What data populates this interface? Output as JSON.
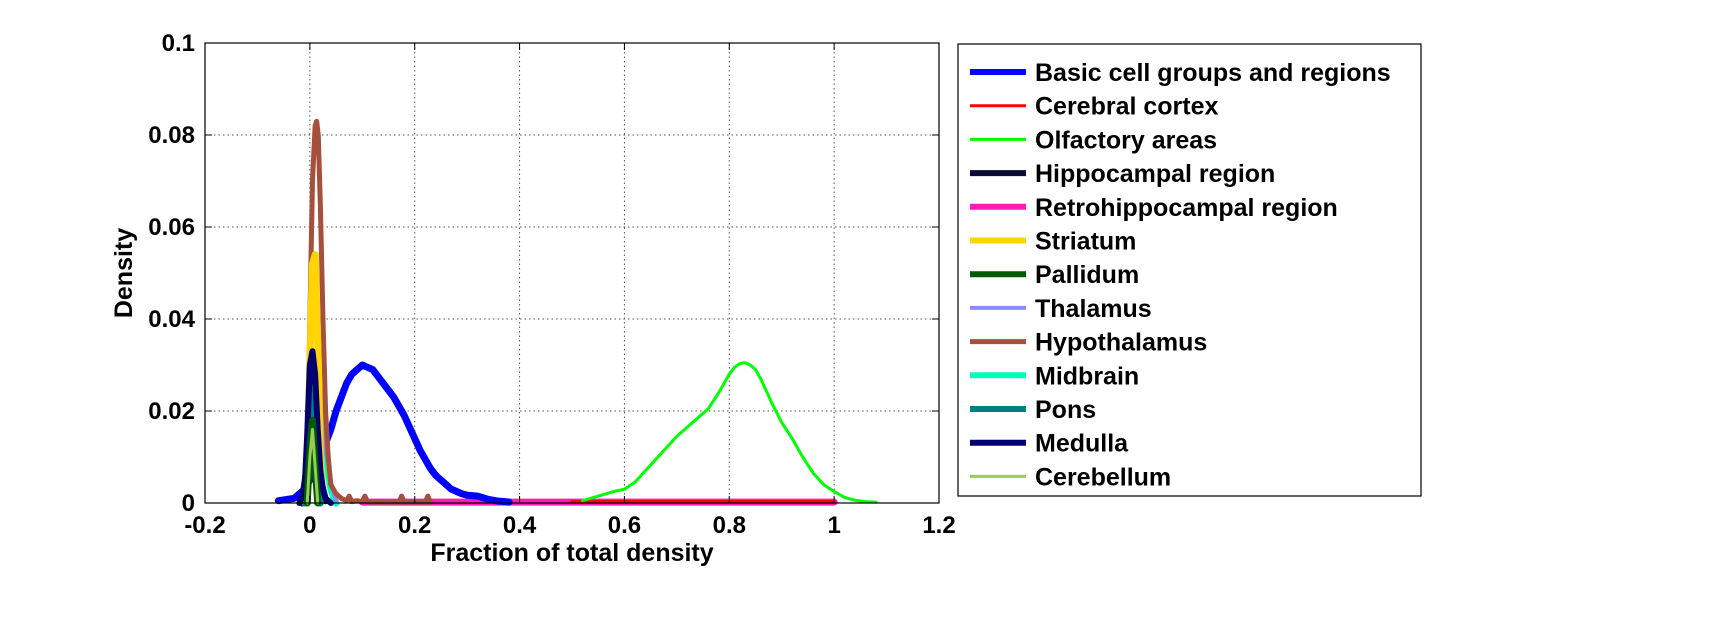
{
  "chart_data": {
    "type": "line",
    "title": "",
    "xlabel": "Fraction of total density",
    "ylabel": "Density",
    "xlim": [
      -0.2,
      1.2
    ],
    "ylim": [
      0,
      0.1
    ],
    "xticks": [
      -0.2,
      0,
      0.2,
      0.4,
      0.6,
      0.8,
      1,
      1.2
    ],
    "xtick_labels": [
      "-0.2",
      "0",
      "0.2",
      "0.4",
      "0.6",
      "0.8",
      "1",
      "1.2"
    ],
    "yticks": [
      0,
      0.02,
      0.04,
      0.06,
      0.08,
      0.1
    ],
    "ytick_labels": [
      "0",
      "0.02",
      "0.04",
      "0.06",
      "0.08",
      "0.1"
    ],
    "grid": true,
    "legend_position": "outside-right",
    "series": [
      {
        "name": "Basic cell groups and regions",
        "color": "#0000ff",
        "width": 7,
        "x": [
          -0.06,
          -0.03,
          -0.01,
          0.0,
          0.01,
          0.02,
          0.03,
          0.04,
          0.05,
          0.06,
          0.07,
          0.08,
          0.09,
          0.1,
          0.11,
          0.12,
          0.13,
          0.14,
          0.15,
          0.16,
          0.17,
          0.18,
          0.19,
          0.2,
          0.21,
          0.22,
          0.23,
          0.24,
          0.25,
          0.26,
          0.27,
          0.28,
          0.29,
          0.3,
          0.32,
          0.34,
          0.36,
          0.38
        ],
        "y": [
          0.0005,
          0.001,
          0.003,
          0.005,
          0.009,
          0.013,
          0.013,
          0.016,
          0.02,
          0.023,
          0.026,
          0.028,
          0.029,
          0.03,
          0.0295,
          0.029,
          0.0275,
          0.026,
          0.0245,
          0.023,
          0.021,
          0.019,
          0.0165,
          0.014,
          0.0115,
          0.0095,
          0.0075,
          0.006,
          0.005,
          0.004,
          0.003,
          0.0025,
          0.002,
          0.0017,
          0.0015,
          0.0008,
          0.0004,
          0.0002
        ]
      },
      {
        "name": "Cerebral cortex",
        "color": "#ff0000",
        "width": 3,
        "x": [
          0.5,
          0.6,
          0.7,
          0.8,
          0.9,
          1.0
        ],
        "y": [
          0.0003,
          0.0003,
          0.0003,
          0.0003,
          0.0003,
          0.0003
        ]
      },
      {
        "name": "Olfactory areas",
        "color": "#00ff00",
        "width": 3,
        "x": [
          0.52,
          0.55,
          0.58,
          0.6,
          0.62,
          0.64,
          0.66,
          0.68,
          0.7,
          0.72,
          0.74,
          0.76,
          0.78,
          0.8,
          0.81,
          0.82,
          0.83,
          0.84,
          0.85,
          0.86,
          0.87,
          0.88,
          0.9,
          0.92,
          0.94,
          0.96,
          0.98,
          1.0,
          1.02,
          1.04,
          1.06,
          1.08
        ],
        "y": [
          0.0005,
          0.0015,
          0.0025,
          0.003,
          0.0045,
          0.007,
          0.0095,
          0.012,
          0.0145,
          0.0165,
          0.0185,
          0.0205,
          0.024,
          0.028,
          0.0295,
          0.0303,
          0.0305,
          0.03,
          0.029,
          0.027,
          0.0245,
          0.022,
          0.0175,
          0.014,
          0.01,
          0.0065,
          0.004,
          0.0025,
          0.0012,
          0.0006,
          0.0003,
          0.0002
        ]
      },
      {
        "name": "Hippocampal region",
        "color": "#0b0b38",
        "width": 7,
        "x": [
          -0.015,
          -0.005,
          0.0,
          0.005,
          0.01,
          0.02,
          0.03
        ],
        "y": [
          0,
          0.008,
          0.025,
          0.031,
          0.02,
          0.005,
          0.0005
        ]
      },
      {
        "name": "Retrohippocampal region",
        "color": "#ff1ab8",
        "width": 7,
        "x": [
          0.1,
          0.2,
          0.3,
          0.4,
          0.5,
          0.6,
          0.7,
          0.8,
          0.9,
          1.0
        ],
        "y": [
          0.0002,
          0.0002,
          0.0002,
          0.0002,
          0.0002,
          0.0002,
          0.0002,
          0.0002,
          0.0002,
          0.0002
        ]
      },
      {
        "name": "Striatum",
        "color": "#ffd400",
        "width": 7,
        "x": [
          -0.01,
          -0.005,
          0.0,
          0.005,
          0.01,
          0.015,
          0.02,
          0.025
        ],
        "y": [
          0,
          0.01,
          0.03,
          0.052,
          0.054,
          0.035,
          0.01,
          0.001
        ]
      },
      {
        "name": "Pallidum",
        "color": "#005a00",
        "width": 7,
        "x": [
          -0.005,
          0.0,
          0.005,
          0.01,
          0.015
        ],
        "y": [
          0,
          0.012,
          0.018,
          0.008,
          0.0
        ]
      },
      {
        "name": "Thalamus",
        "color": "#8a8aff",
        "width": 4,
        "x": [
          -0.01,
          0.0,
          0.01,
          0.02,
          0.03,
          0.04,
          0.05
        ],
        "y": [
          0.0,
          0.01,
          0.028,
          0.025,
          0.012,
          0.004,
          0.0005
        ]
      },
      {
        "name": "Hypothalamus",
        "color": "#a4503c",
        "width": 5,
        "x": [
          -0.01,
          -0.005,
          0.0,
          0.005,
          0.01,
          0.013,
          0.016,
          0.02,
          0.025,
          0.03,
          0.035,
          0.04,
          0.05,
          0.06,
          0.07,
          0.075,
          0.08,
          0.09,
          0.1,
          0.105,
          0.11,
          0.12,
          0.17,
          0.175,
          0.18,
          0.22,
          0.225,
          0.23
        ],
        "y": [
          0.0,
          0.01,
          0.04,
          0.07,
          0.082,
          0.083,
          0.08,
          0.065,
          0.04,
          0.02,
          0.01,
          0.004,
          0.002,
          0.001,
          0.0005,
          0.0015,
          0.0003,
          0.0005,
          0.0003,
          0.0015,
          0.0003,
          0.0002,
          0.0002,
          0.0015,
          0.0002,
          0.0002,
          0.0015,
          0.0002
        ]
      },
      {
        "name": "Midbrain",
        "color": "#00ffb8",
        "width": 7,
        "x": [
          -0.01,
          0.0,
          0.01,
          0.02,
          0.03,
          0.04,
          0.05
        ],
        "y": [
          0.0,
          0.008,
          0.02,
          0.018,
          0.01,
          0.003,
          0.0
        ]
      },
      {
        "name": "Pons",
        "color": "#008080",
        "width": 7,
        "x": [
          -0.01,
          -0.005,
          0.0,
          0.005,
          0.01,
          0.015,
          0.02
        ],
        "y": [
          0.0,
          0.01,
          0.022,
          0.025,
          0.015,
          0.005,
          0.0
        ]
      },
      {
        "name": "Medulla",
        "color": "#000070",
        "width": 6,
        "x": [
          -0.02,
          -0.01,
          -0.005,
          0.0,
          0.005,
          0.01,
          0.015,
          0.02,
          0.025,
          0.03,
          0.04
        ],
        "y": [
          0.0,
          0.003,
          0.015,
          0.03,
          0.033,
          0.028,
          0.016,
          0.007,
          0.003,
          0.001,
          0.0
        ]
      },
      {
        "name": "Cerebellum",
        "color": "#99cc55",
        "width": 3,
        "x": [
          -0.005,
          0.0,
          0.005,
          0.01,
          0.015
        ],
        "y": [
          0.0,
          0.01,
          0.016,
          0.008,
          0.0
        ]
      }
    ]
  }
}
